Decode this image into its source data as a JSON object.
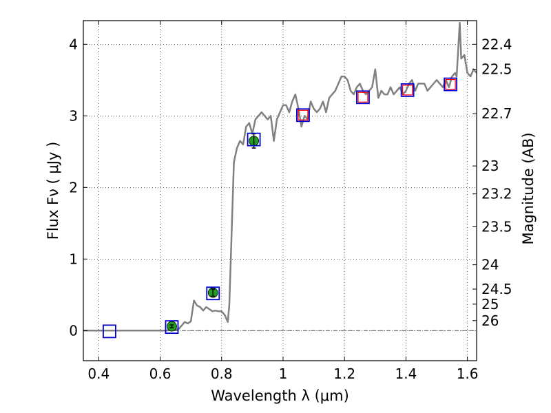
{
  "chart_data": {
    "type": "scatter",
    "xlabel": "Wavelength  λ (μm)",
    "ylabel": "Flux  Fν ( μJy )",
    "ylabel_right": "Magnitude (AB)",
    "xlim": [
      0.35,
      1.63
    ],
    "ylim": [
      -0.42,
      4.33
    ],
    "grid": true,
    "x_ticks": [
      0.4,
      0.6,
      0.8,
      1.0,
      1.2,
      1.4,
      1.6
    ],
    "x_tick_labels": [
      "0.4",
      "0.6",
      "0.8",
      "1",
      "1.2",
      "1.4",
      "1.6"
    ],
    "y_ticks": [
      0,
      1,
      2,
      3,
      4
    ],
    "y_tick_labels": [
      "0",
      "1",
      "2",
      "3",
      "4"
    ],
    "mag_ticks": [
      {
        "label": "22.4",
        "flux": 4.0
      },
      {
        "label": "22.5",
        "flux": 3.65
      },
      {
        "label": "22.7",
        "flux": 3.03
      },
      {
        "label": "23",
        "flux": 2.3
      },
      {
        "label": "23.2",
        "flux": 1.91
      },
      {
        "label": "23.5",
        "flux": 1.45
      },
      {
        "label": "24",
        "flux": 0.92
      },
      {
        "label": "24.5",
        "flux": 0.58
      },
      {
        "label": "25",
        "flux": 0.37
      },
      {
        "label": "26",
        "flux": 0.14
      }
    ],
    "model_spectrum": {
      "color": "#808080",
      "x": [
        0.35,
        0.62,
        0.66,
        0.68,
        0.69,
        0.7,
        0.71,
        0.72,
        0.73,
        0.74,
        0.75,
        0.76,
        0.77,
        0.78,
        0.79,
        0.8,
        0.81,
        0.82,
        0.825,
        0.83,
        0.84,
        0.85,
        0.86,
        0.87,
        0.88,
        0.89,
        0.9,
        0.91,
        0.92,
        0.93,
        0.94,
        0.95,
        0.96,
        0.97,
        0.98,
        0.99,
        1.0,
        1.01,
        1.02,
        1.03,
        1.04,
        1.05,
        1.06,
        1.07,
        1.08,
        1.09,
        1.1,
        1.11,
        1.12,
        1.13,
        1.14,
        1.15,
        1.16,
        1.17,
        1.18,
        1.19,
        1.2,
        1.21,
        1.22,
        1.23,
        1.24,
        1.25,
        1.26,
        1.27,
        1.28,
        1.29,
        1.3,
        1.31,
        1.32,
        1.33,
        1.34,
        1.35,
        1.36,
        1.37,
        1.38,
        1.39,
        1.4,
        1.41,
        1.42,
        1.43,
        1.44,
        1.45,
        1.46,
        1.47,
        1.48,
        1.49,
        1.5,
        1.51,
        1.52,
        1.53,
        1.54,
        1.55,
        1.56,
        1.565,
        1.575,
        1.58,
        1.59,
        1.6,
        1.61,
        1.62,
        1.63
      ],
      "y": [
        0.0,
        0.0,
        0.02,
        0.12,
        0.1,
        0.13,
        0.42,
        0.35,
        0.33,
        0.28,
        0.33,
        0.3,
        0.27,
        0.28,
        0.27,
        0.27,
        0.22,
        0.12,
        0.35,
        1.0,
        2.35,
        2.55,
        2.65,
        2.6,
        2.85,
        2.9,
        2.75,
        2.95,
        3.0,
        3.05,
        3.0,
        2.95,
        3.0,
        2.65,
        2.95,
        3.05,
        3.15,
        3.15,
        3.05,
        3.2,
        3.3,
        3.1,
        2.85,
        3.0,
        2.95,
        3.2,
        3.1,
        3.05,
        3.1,
        3.2,
        3.05,
        3.25,
        3.3,
        3.35,
        3.45,
        3.55,
        3.55,
        3.5,
        3.35,
        3.3,
        3.4,
        3.45,
        3.35,
        3.3,
        3.35,
        3.4,
        3.65,
        3.25,
        3.35,
        3.3,
        3.3,
        3.4,
        3.3,
        3.35,
        3.4,
        3.3,
        3.35,
        3.45,
        3.5,
        3.35,
        3.45,
        3.45,
        3.45,
        3.35,
        3.4,
        3.45,
        3.5,
        3.45,
        3.4,
        3.5,
        3.4,
        3.55,
        3.6,
        3.55,
        4.3,
        3.8,
        3.85,
        3.6,
        3.55,
        3.65,
        3.6
      ]
    },
    "observed_points": [
      {
        "x": 0.638,
        "y": 0.06,
        "yerr": 0.02
      },
      {
        "x": 0.772,
        "y": 0.53,
        "yerr": 0.05
      },
      {
        "x": 0.905,
        "y": 2.65,
        "yerr": 0.1
      }
    ],
    "observed_color": "#1f9f1f",
    "model_band_points": [
      {
        "x": 0.435,
        "y": -0.01
      },
      {
        "x": 0.638,
        "y": 0.05
      },
      {
        "x": 0.772,
        "y": 0.52
      },
      {
        "x": 0.905,
        "y": 2.67
      },
      {
        "x": 1.065,
        "y": 3.01
      },
      {
        "x": 1.26,
        "y": 3.26
      },
      {
        "x": 1.405,
        "y": 3.36
      },
      {
        "x": 1.545,
        "y": 3.44
      }
    ],
    "model_band_color": "#0000cc",
    "red_band_points": [
      {
        "x": 1.065,
        "y": 3.01
      },
      {
        "x": 1.26,
        "y": 3.26
      },
      {
        "x": 1.405,
        "y": 3.36
      },
      {
        "x": 1.545,
        "y": 3.44
      }
    ],
    "red_band_color": "#ff0000",
    "zero_line_color": "#444444"
  }
}
